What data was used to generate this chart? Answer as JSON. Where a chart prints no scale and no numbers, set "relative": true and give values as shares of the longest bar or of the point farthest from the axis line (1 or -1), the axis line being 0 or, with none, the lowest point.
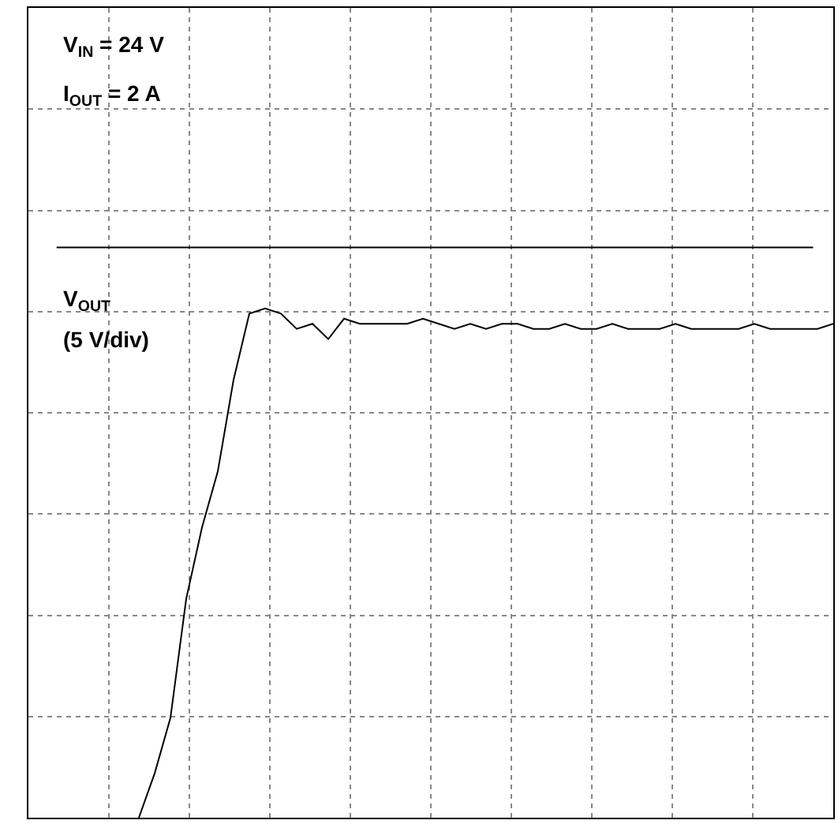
{
  "chart_data": {
    "type": "line",
    "relative": true,
    "grid": true,
    "color": "#000000",
    "categories": [
      null,
      null,
      null,
      null,
      null,
      null,
      null,
      null,
      null,
      null,
      null,
      null,
      null,
      null,
      null,
      null,
      null,
      null,
      null,
      null,
      null,
      null,
      null,
      null,
      null,
      null,
      null,
      null,
      null,
      null,
      null,
      null,
      null,
      null,
      null,
      null,
      null,
      null,
      null,
      null,
      null,
      null,
      null,
      null,
      null,
      null,
      null,
      null,
      null,
      null,
      null,
      null
    ],
    "values": [
      null,
      null,
      null,
      null,
      null,
      null,
      null,
      0,
      0.087,
      0.196,
      0.43,
      0.57,
      0.68,
      0.86,
      0.99,
      1,
      0.99,
      0.96,
      0.97,
      0.94,
      0.98,
      0.97,
      0.97,
      0.97,
      0.97,
      0.98,
      0.97,
      0.96,
      0.97,
      0.96,
      0.97,
      0.97,
      0.96,
      0.96,
      0.97,
      0.96,
      0.96,
      0.97,
      0.96,
      0.96,
      0.96,
      0.97,
      0.96,
      0.96,
      0.96,
      0.96,
      0.97,
      0.96,
      0.96,
      0.96,
      0.96,
      0.97
    ],
    "ref_lines": [
      {
        "axis": "y",
        "value": 1.12,
        "color": "#000000"
      }
    ],
    "annotations": [
      "V$_{IN}$ = 24 V",
      "I$_{OUT}$ = 2 A",
      "V$_{OUT}$",
      "(5 V/div)"
    ]
  }
}
